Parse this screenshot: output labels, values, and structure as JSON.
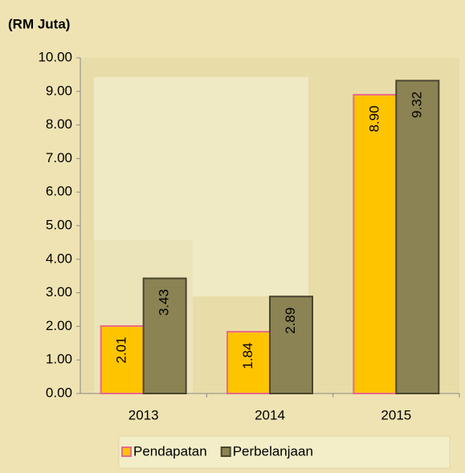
{
  "chart_data": {
    "type": "bar",
    "title": "(RM Juta)",
    "categories": [
      "2013",
      "2014",
      "2015"
    ],
    "series": [
      {
        "name": "Pendapatan",
        "color": "#ffc400",
        "values": [
          2.01,
          1.84,
          8.9
        ],
        "value_labels": [
          "2.01",
          "1.84",
          "8.90"
        ]
      },
      {
        "name": "Perbelanjaan",
        "color": "#8b8353",
        "values": [
          3.43,
          2.89,
          9.32
        ],
        "value_labels": [
          "3.43",
          "2.89",
          "9.32"
        ]
      }
    ],
    "ylim": [
      0,
      10
    ],
    "yticks": [
      {
        "value": 0,
        "label": "0.00"
      },
      {
        "value": 1,
        "label": "1.00"
      },
      {
        "value": 2,
        "label": "2.00"
      },
      {
        "value": 3,
        "label": "3.00"
      },
      {
        "value": 4,
        "label": "4.00"
      },
      {
        "value": 5,
        "label": "5.00"
      },
      {
        "value": 6,
        "label": "6.00"
      },
      {
        "value": 7,
        "label": "7.00"
      },
      {
        "value": 8,
        "label": "8.00"
      },
      {
        "value": 9,
        "label": "9.00"
      },
      {
        "value": 10,
        "label": "10.00"
      }
    ],
    "legend": "bottom"
  }
}
